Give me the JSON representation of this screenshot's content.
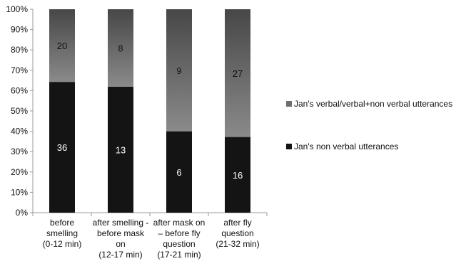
{
  "chart_data": {
    "type": "bar",
    "stacked": true,
    "normalized_percent": true,
    "categories": [
      [
        "before",
        "smelling",
        "(0-12 min)"
      ],
      [
        "after smelling -",
        "before mask",
        "on",
        "(12-17 min)"
      ],
      [
        "after mask on",
        "– before fly",
        "question",
        "(17-21 min)"
      ],
      [
        "after fly",
        "question",
        "(21-32 min)"
      ]
    ],
    "series": [
      {
        "name": "Jan's non verbal utterances",
        "values": [
          36,
          13,
          6,
          16
        ],
        "color": "#141414",
        "label_color": "#ffffff"
      },
      {
        "name": "Jan's verbal/verbal+non verbal utterances",
        "values": [
          20,
          8,
          9,
          27
        ],
        "color": "#6f6f6f",
        "label_color": "#111111"
      }
    ],
    "ylim": [
      0,
      100
    ],
    "yticks": [
      "0%",
      "10%",
      "20%",
      "30%",
      "40%",
      "50%",
      "60%",
      "70%",
      "80%",
      "90%",
      "100%"
    ],
    "grid": false,
    "legend_position": "right"
  }
}
